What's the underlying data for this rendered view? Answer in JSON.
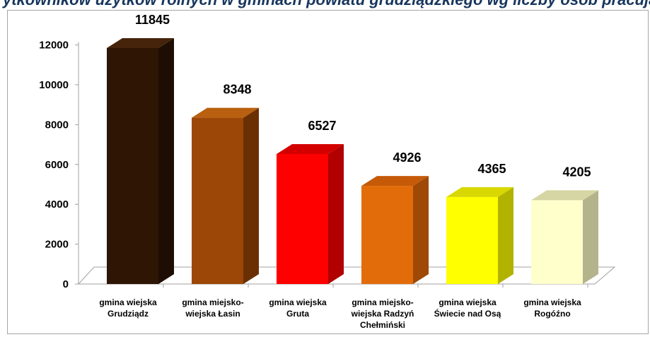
{
  "header": {
    "title": "ytkowników użytków rolnych w gminach powiatu grudziądzkiego wg liczby osób pracujących w gosp. rolnych"
  },
  "chart_data": {
    "type": "bar",
    "title": "ytkowników użytków rolnych w gminach powiatu grudziądzkiego wg liczby osób pracujących w gosp. rolnych",
    "xlabel": "",
    "ylabel": "",
    "ylim": [
      0,
      12000
    ],
    "yticks": [
      "0",
      "2000",
      "4000",
      "6000",
      "8000",
      "10000",
      "12000"
    ],
    "grid": false,
    "legend": "none",
    "categories": [
      [
        "gmina wiejska",
        "Grudziądz"
      ],
      [
        "gmina miejsko-",
        "wiejska Łasin"
      ],
      [
        "gmina wiejska",
        "Gruta"
      ],
      [
        "gmina miejsko-",
        "wiejska Radzyń",
        "Chełmiński"
      ],
      [
        "gmina wiejska",
        "Świecie nad Osą"
      ],
      [
        "gmina wiejska",
        "Rogóźno"
      ]
    ],
    "values": [
      11845,
      8348,
      6527,
      4926,
      4365,
      4205
    ],
    "data_labels": [
      "11845",
      "8348",
      "6527",
      "4926",
      "4365",
      "4205"
    ],
    "colors": [
      {
        "front": "#2e1504",
        "side": "#1e0d02",
        "top": "#45240b"
      },
      {
        "front": "#9c4708",
        "side": "#6a3004",
        "top": "#b8600f"
      },
      {
        "front": "#ff0000",
        "side": "#b00000",
        "top": "#d40000"
      },
      {
        "front": "#e36c0a",
        "side": "#9e4906",
        "top": "#c55a08"
      },
      {
        "front": "#ffff00",
        "side": "#b2b200",
        "top": "#d8d800"
      },
      {
        "front": "#ffffcc",
        "side": "#b4b48c",
        "top": "#d6d6a4"
      }
    ]
  }
}
